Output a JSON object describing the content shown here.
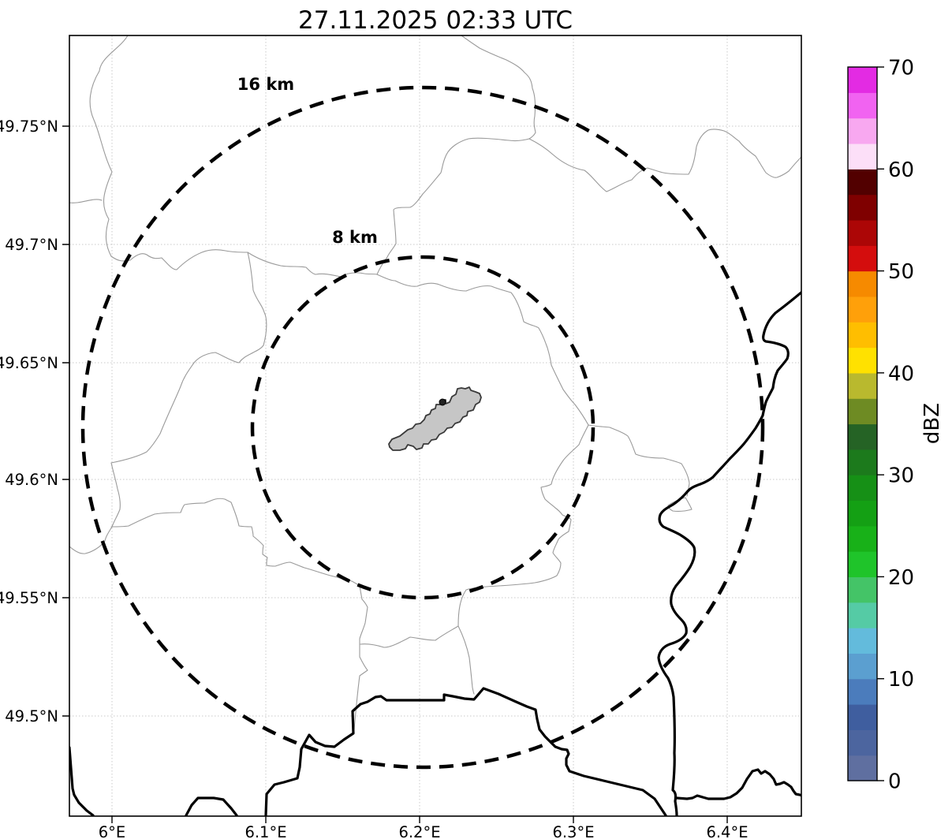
{
  "title": "27.11.2025 02:33 UTC",
  "map": {
    "x_axis": {
      "ticks": [
        "6°E",
        "6.1°E",
        "6.2°E",
        "6.3°E",
        "6.4°E"
      ]
    },
    "y_axis": {
      "ticks": [
        "49.75°N",
        "49.7°N",
        "49.65°N",
        "49.6°N",
        "49.55°N",
        "49.5°N"
      ]
    },
    "range_rings": [
      {
        "label": "16 km",
        "radius_km": 16
      },
      {
        "label": "8 km",
        "radius_km": 8
      }
    ]
  },
  "colorbar": {
    "label": "dBZ",
    "tick_labels": [
      "0",
      "10",
      "20",
      "30",
      "40",
      "50",
      "60",
      "70"
    ],
    "min": 0,
    "max": 70,
    "step_dbz": 2.5,
    "colors_bottom_to_top": [
      "#5F6FA0",
      "#4C659F",
      "#3F5E9F",
      "#4B7CBC",
      "#5B9FD0",
      "#63BBDC",
      "#55CBA5",
      "#44C467",
      "#1FC42A",
      "#18B118",
      "#14A014",
      "#169016",
      "#1C7A1C",
      "#256325",
      "#6E8B23",
      "#B9B92E",
      "#FFE100",
      "#FFBE00",
      "#FFA00A",
      "#F68A00",
      "#D40D0D",
      "#AC0606",
      "#7F0000",
      "#520000",
      "#FCDFF8",
      "#F8A8F0",
      "#F163F1",
      "#E32BE3"
    ]
  },
  "chart_data": {
    "type": "map",
    "title": "27.11.2025 02:33 UTC",
    "description": "Weather radar range-ring map centered near 6.2°E / 49.62°N with dashed 8 km and 16 km range circles, gray administrative boundary lines, thick black border/river lines, a gray airport-area polygon at the center, and a dBZ reflectivity colorbar; no reflectivity echoes are present.",
    "colorbar": {
      "units": "dBZ",
      "range": [
        0,
        70
      ],
      "step": 2.5
    },
    "range_rings_km": [
      8,
      16
    ],
    "x_tick_values_deg_e": [
      6.0,
      6.1,
      6.2,
      6.3,
      6.4
    ],
    "y_tick_values_deg_n": [
      49.75,
      49.7,
      49.65,
      49.6,
      49.55,
      49.5
    ],
    "lon_range_deg_e": [
      5.97,
      6.45
    ],
    "lat_range_deg_n": [
      49.456,
      49.788
    ]
  }
}
